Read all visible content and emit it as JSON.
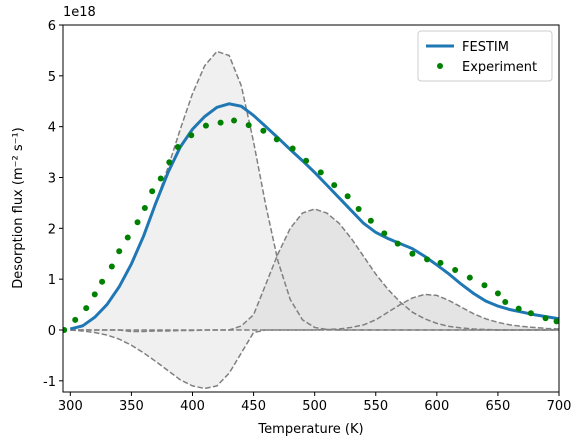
{
  "chart_data": {
    "type": "line",
    "offset_label": "1e18",
    "xlabel": "Temperature (K)",
    "ylabel": "Desorption flux (m⁻² s⁻¹)",
    "xlim": [
      294,
      700
    ],
    "ylim": [
      -1.22,
      6
    ],
    "xticks": [
      300,
      350,
      400,
      450,
      500,
      550,
      600,
      650,
      700
    ],
    "yticks": [
      -1,
      0,
      1,
      2,
      3,
      4,
      5,
      6
    ],
    "legend": "upper right",
    "x": [
      300,
      310,
      320,
      330,
      340,
      350,
      360,
      370,
      380,
      390,
      400,
      410,
      420,
      430,
      440,
      450,
      460,
      470,
      480,
      490,
      500,
      510,
      520,
      530,
      540,
      550,
      560,
      570,
      580,
      590,
      600,
      610,
      620,
      630,
      640,
      650,
      660,
      670,
      680,
      690,
      700
    ],
    "components": [
      {
        "color": "#808080",
        "fill": "#f0f0f0",
        "values": [
          0.02,
          0.1,
          0.25,
          0.5,
          0.85,
          1.3,
          1.85,
          2.5,
          3.2,
          3.95,
          4.65,
          5.2,
          5.48,
          5.4,
          4.8,
          3.7,
          2.45,
          1.35,
          0.6,
          0.2,
          0.05,
          0.01,
          0,
          0,
          0,
          0,
          0,
          0,
          0,
          0,
          0,
          0,
          0,
          0,
          0,
          0,
          0,
          0,
          0,
          0,
          0
        ]
      },
      {
        "color": "#808080",
        "fill": "#f0f0f0",
        "values": [
          0,
          -0.02,
          -0.05,
          -0.1,
          -0.18,
          -0.3,
          -0.45,
          -0.62,
          -0.8,
          -0.98,
          -1.1,
          -1.15,
          -1.1,
          -0.85,
          -0.45,
          -0.05,
          0,
          0,
          0,
          0,
          0,
          0,
          0,
          0,
          0,
          0,
          0,
          0,
          0,
          0,
          0,
          0,
          0,
          0,
          0,
          0,
          0,
          0,
          0,
          0,
          0
        ]
      },
      {
        "color": "#808080",
        "fill": "#e4e4e4",
        "values": [
          0,
          0,
          0,
          0,
          0,
          -0.03,
          -0.03,
          -0.02,
          -0.02,
          -0.01,
          -0.01,
          0,
          0,
          0,
          0.08,
          0.3,
          0.9,
          1.5,
          2.0,
          2.3,
          2.38,
          2.3,
          2.1,
          1.8,
          1.45,
          1.1,
          0.8,
          0.55,
          0.35,
          0.22,
          0.13,
          0.07,
          0.04,
          0.02,
          0.01,
          0,
          0,
          0,
          0,
          0,
          0
        ]
      },
      {
        "color": "#808080",
        "fill": "#e4e4e4",
        "values": [
          0,
          0,
          0,
          0,
          0,
          0,
          0,
          0,
          0,
          0,
          0,
          0,
          0,
          0,
          0,
          0,
          0,
          0,
          0,
          0,
          0,
          0.01,
          0.02,
          0.05,
          0.1,
          0.2,
          0.35,
          0.5,
          0.63,
          0.7,
          0.68,
          0.58,
          0.45,
          0.32,
          0.22,
          0.15,
          0.1,
          0.07,
          0.05,
          0.03,
          0.02
        ]
      }
    ],
    "series": [
      {
        "name": "FESTIM",
        "color": "#1f77b4",
        "style": "line",
        "values": [
          0.02,
          0.08,
          0.25,
          0.5,
          0.85,
          1.3,
          1.85,
          2.5,
          3.1,
          3.6,
          3.95,
          4.2,
          4.38,
          4.45,
          4.4,
          4.22,
          4.0,
          3.78,
          3.55,
          3.33,
          3.1,
          2.85,
          2.6,
          2.35,
          2.1,
          1.92,
          1.8,
          1.7,
          1.6,
          1.45,
          1.28,
          1.1,
          0.9,
          0.72,
          0.57,
          0.47,
          0.4,
          0.35,
          0.3,
          0.26,
          0.22
        ]
      },
      {
        "name": "Experiment",
        "color": "#008000",
        "style": "scatter",
        "x": [
          295,
          304,
          313,
          320,
          326,
          334,
          340,
          347,
          355,
          361,
          367,
          374,
          381,
          388,
          399,
          411,
          423,
          434,
          446,
          458,
          469,
          482,
          493,
          505,
          516,
          527,
          536,
          546,
          557,
          568,
          580,
          592,
          603,
          615,
          627,
          639,
          650,
          656,
          667,
          677,
          689,
          698
        ],
        "values": [
          0,
          0.2,
          0.43,
          0.7,
          0.95,
          1.25,
          1.55,
          1.82,
          2.12,
          2.4,
          2.73,
          2.98,
          3.3,
          3.6,
          3.83,
          4.02,
          4.08,
          4.12,
          4.03,
          3.92,
          3.75,
          3.57,
          3.33,
          3.1,
          2.85,
          2.63,
          2.38,
          2.15,
          1.9,
          1.7,
          1.5,
          1.39,
          1.32,
          1.18,
          1.03,
          0.88,
          0.72,
          0.55,
          0.42,
          0.33,
          0.23,
          0.17
        ]
      }
    ]
  }
}
